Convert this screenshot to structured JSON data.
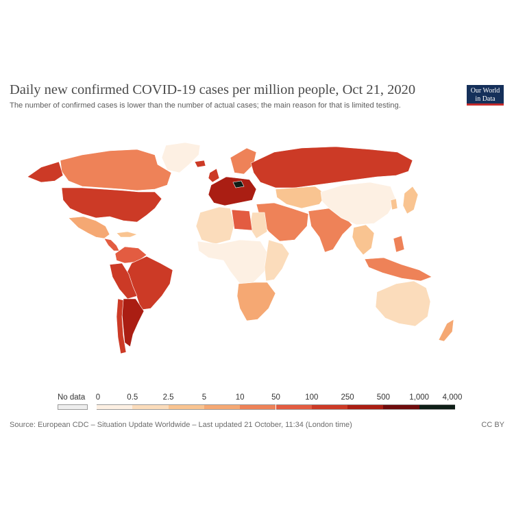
{
  "header": {
    "title": "Daily new confirmed COVID-19 cases per million people, Oct 21, 2020",
    "subtitle": "The number of confirmed cases is lower than the number of actual cases; the main reason for that is limited testing."
  },
  "logo": {
    "line1": "Our World",
    "line2": "in Data"
  },
  "legend": {
    "no_data_label": "No data",
    "no_data_color": "#eeeeee",
    "ticks": [
      "0",
      "0.5",
      "2.5",
      "5",
      "10",
      "50",
      "100",
      "250",
      "500",
      "1,000",
      "4,000"
    ],
    "colors": [
      "#fdf0e3",
      "#fbdcbb",
      "#f9c491",
      "#f5a873",
      "#ee8258",
      "#e35c41",
      "#cc3a26",
      "#aa1e13",
      "#6e0b0c",
      "#0e1e17"
    ]
  },
  "regions": [
    {
      "name": "greenland",
      "color": "#fdf0e3"
    },
    {
      "name": "canada",
      "color": "#ee8258"
    },
    {
      "name": "usa",
      "color": "#cc3a26"
    },
    {
      "name": "mexico",
      "color": "#f5a873"
    },
    {
      "name": "central-america",
      "color": "#e35c41"
    },
    {
      "name": "caribbean",
      "color": "#f9c491"
    },
    {
      "name": "colombia-venezuela",
      "color": "#e35c41"
    },
    {
      "name": "brazil",
      "color": "#cc3a26"
    },
    {
      "name": "peru-bolivia",
      "color": "#cc3a26"
    },
    {
      "name": "argentina",
      "color": "#aa1e13"
    },
    {
      "name": "chile",
      "color": "#cc3a26"
    },
    {
      "name": "iceland-uk",
      "color": "#cc3a26"
    },
    {
      "name": "scandinavia",
      "color": "#ee8258"
    },
    {
      "name": "western-europe",
      "color": "#aa1e13"
    },
    {
      "name": "czechia",
      "color": "#0e1e17"
    },
    {
      "name": "russia",
      "color": "#cc3a26"
    },
    {
      "name": "kazakhstan-central-asia",
      "color": "#f9c491"
    },
    {
      "name": "middle-east",
      "color": "#ee8258"
    },
    {
      "name": "north-africa",
      "color": "#fbdcbb"
    },
    {
      "name": "libya",
      "color": "#e35c41"
    },
    {
      "name": "west-central-africa",
      "color": "#fdf0e3"
    },
    {
      "name": "east-africa",
      "color": "#fbdcbb"
    },
    {
      "name": "southern-africa",
      "color": "#f5a873"
    },
    {
      "name": "india-south-asia",
      "color": "#ee8258"
    },
    {
      "name": "china-mongolia",
      "color": "#fdf0e3"
    },
    {
      "name": "southeast-asia",
      "color": "#f9c491"
    },
    {
      "name": "indonesia-philippines",
      "color": "#ee8258"
    },
    {
      "name": "japan-korea",
      "color": "#f9c491"
    },
    {
      "name": "australia",
      "color": "#fbdcbb"
    },
    {
      "name": "new-zealand",
      "color": "#f5a873"
    }
  ],
  "footer": {
    "source": "Source: European CDC – Situation Update Worldwide – Last updated 21 October, 11:34 (London time)",
    "license": "CC BY"
  }
}
